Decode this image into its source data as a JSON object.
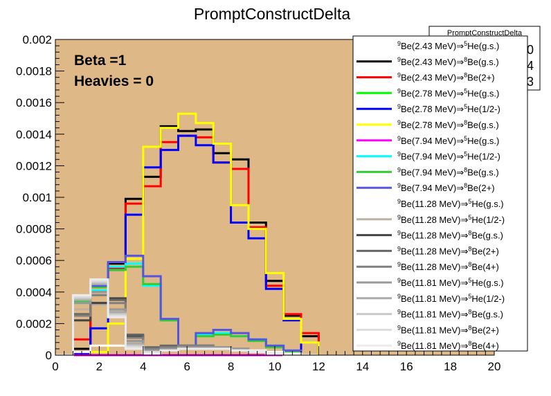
{
  "chart_data": {
    "type": "line",
    "title": "PromptConstructDelta",
    "xlabel": "",
    "ylabel": "",
    "xlim": [
      0,
      20
    ],
    "ylim": [
      0,
      0.002
    ],
    "x_ticks": [
      "0",
      "2",
      "4",
      "6",
      "8",
      "10",
      "12",
      "14",
      "16",
      "18",
      "20"
    ],
    "y_ticks": [
      "0",
      "0.0002",
      "0.0004",
      "0.0006",
      "0.0008",
      "0.001",
      "0.0012",
      "0.0014",
      "0.0016",
      "0.0018",
      "0.002"
    ],
    "plot_background": "#deb887",
    "annotations": [
      "Beta =1",
      "Heavies = 0"
    ],
    "stats_box": {
      "title": "PromptConstructDelta",
      "values": [
        "0",
        "4",
        "3"
      ]
    },
    "bin_edges": [
      0,
      0.8,
      1.6,
      2.4,
      3.2,
      4.0,
      4.8,
      5.6,
      6.4,
      7.2,
      8.0,
      8.8,
      9.6,
      10.4,
      11.2,
      12.0
    ],
    "series": [
      {
        "name": "9Be(2.43 MeV)⇒5He(g.s.)",
        "color": "#ffffff",
        "values": [
          0,
          0,
          0,
          0,
          0,
          0,
          0,
          0,
          0,
          0,
          0,
          0,
          0,
          0,
          0
        ]
      },
      {
        "name": "9Be(2.43 MeV)⇒8Be(g.s.)",
        "color": "#000000",
        "values": [
          0,
          4e-05,
          0.00033,
          0.00058,
          0.00099,
          0.00113,
          0.00145,
          0.00142,
          0.00143,
          0.00128,
          0.00124,
          0.00084,
          0.00047,
          0.00025,
          0.00012
        ]
      },
      {
        "name": "9Be(2.43 MeV)⇒8Be(2+)",
        "color": "#ff0000",
        "values": [
          0,
          0.0001,
          0.00032,
          0.00055,
          0.00096,
          0.00107,
          0.00135,
          0.00139,
          0.00138,
          0.00122,
          0.00118,
          0.00081,
          0.00044,
          0.00026,
          0.00014
        ]
      },
      {
        "name": "9Be(2.78 MeV)⇒5He(g.s.)",
        "color": "#00ff00",
        "values": [
          0,
          0,
          0,
          0,
          0,
          0,
          0,
          0,
          0,
          0,
          0,
          0,
          0,
          0,
          0
        ]
      },
      {
        "name": "9Be(2.78 MeV)⇒5He(1/2-)",
        "color": "#0000ff",
        "values": [
          0,
          1e-05,
          0.00017,
          0.00054,
          0.00089,
          0.00119,
          0.0013,
          0.00139,
          0.00133,
          0.00122,
          0.00084,
          0.00074,
          0.00042,
          0.00022,
          0
        ]
      },
      {
        "name": "9Be(2.78 MeV)⇒8Be(g.s.)",
        "color": "#ffff00",
        "values": [
          0,
          0,
          2e-05,
          0.0002,
          0.00061,
          0.00132,
          0.00144,
          0.00153,
          0.00147,
          0.00134,
          0.00095,
          0.0008,
          0.00052,
          0.00023,
          8e-05
        ]
      },
      {
        "name": "9Be(7.94 MeV)⇒5He(g.s.)",
        "color": "#ff00ff",
        "values": [
          0,
          0,
          0,
          0,
          0,
          0,
          0,
          0,
          0,
          0,
          0,
          0,
          0,
          0,
          0
        ]
      },
      {
        "name": "9Be(7.94 MeV)⇒5He(1/2-)",
        "color": "#00ffff",
        "values": [
          0,
          0.00033,
          0.00041,
          0.00056,
          0.00058,
          0.00044,
          0.00022,
          6e-05,
          0.00013,
          0.00014,
          0.00012,
          0.0001,
          6e-05,
          2e-05,
          0
        ]
      },
      {
        "name": "9Be(7.94 MeV)⇒8Be(g.s.)",
        "color": "#33cc33",
        "values": [
          0,
          0.00034,
          0.00043,
          0.00054,
          0.00056,
          0.00045,
          0.00022,
          6e-05,
          0.00012,
          0.00013,
          0.00012,
          9e-05,
          5e-05,
          2e-05,
          0
        ]
      },
      {
        "name": "9Be(7.94 MeV)⇒8Be(2+)",
        "color": "#5555dd",
        "values": [
          0,
          0.00036,
          0.00044,
          0.00059,
          0.00063,
          0.0005,
          0.00023,
          6e-05,
          0.00014,
          0.00016,
          0.00014,
          0.0001,
          6e-05,
          3e-05,
          0
        ]
      },
      {
        "name": "9Be(11.28 MeV)⇒5He(g.s.)",
        "color": "#ffffff",
        "values": [
          0,
          2e-05,
          6e-05,
          6e-05,
          5e-05,
          3e-05,
          4e-05,
          6e-05,
          6e-05,
          5e-05,
          4e-05,
          3e-05,
          2e-05,
          1e-05,
          0
        ]
      },
      {
        "name": "9Be(11.28 MeV)⇒5He(1/2-)",
        "color": "#bfb1a0",
        "values": [
          0,
          0.00029,
          0.00032,
          0.00028,
          8e-05,
          2e-05,
          3e-05,
          5e-05,
          6e-05,
          5e-05,
          4e-05,
          2e-05,
          1e-05,
          0,
          0
        ]
      },
      {
        "name": "9Be(11.28 MeV)⇒8Be(g.s.)",
        "color": "#444444",
        "values": [
          0,
          0.00022,
          0.00033,
          0.00036,
          0.00012,
          4e-05,
          5e-05,
          6e-05,
          6e-05,
          5e-05,
          4e-05,
          2e-05,
          1e-05,
          0,
          0
        ]
      },
      {
        "name": "9Be(11.28 MeV)⇒8Be(2+)",
        "color": "#666666",
        "values": [
          0,
          0.00026,
          0.0004,
          0.00035,
          0.00013,
          5e-05,
          6e-05,
          6e-05,
          6e-05,
          5e-05,
          4e-05,
          2e-05,
          1e-05,
          0,
          0
        ]
      },
      {
        "name": "9Be(11.28 MeV)⇒8Be(4+)",
        "color": "#7f7f7f",
        "values": [
          0,
          0.00025,
          0.00038,
          0.00033,
          0.00011,
          4e-05,
          5e-05,
          6e-05,
          6e-05,
          5e-05,
          4e-05,
          2e-05,
          1e-05,
          0,
          0
        ]
      },
      {
        "name": "9Be(11.81 MeV)⇒5He(g.s.)",
        "color": "#999999",
        "values": [
          0,
          0.00033,
          0.0004,
          0.00029,
          9e-05,
          3e-05,
          4e-05,
          5e-05,
          5e-05,
          5e-05,
          4e-05,
          2e-05,
          1e-05,
          0,
          0
        ]
      },
      {
        "name": "9Be(11.81 MeV)⇒5He(1/2-)",
        "color": "#aaaaaa",
        "values": [
          0,
          0.00035,
          0.00045,
          0.00027,
          7e-05,
          2e-05,
          3e-05,
          4e-05,
          4e-05,
          4e-05,
          3e-05,
          2e-05,
          1e-05,
          0,
          0
        ]
      },
      {
        "name": "9Be(11.81 MeV)⇒8Be(g.s.)",
        "color": "#c8c8c8",
        "values": [
          0,
          0.00036,
          0.00046,
          0.00026,
          6e-05,
          2e-05,
          3e-05,
          4e-05,
          4e-05,
          4e-05,
          3e-05,
          2e-05,
          1e-05,
          0,
          0
        ]
      },
      {
        "name": "9Be(11.81 MeV)⇒8Be(2+)",
        "color": "#dcdcdc",
        "values": [
          0,
          0.00037,
          0.00047,
          0.00025,
          5e-05,
          2e-05,
          3e-05,
          4e-05,
          4e-05,
          4e-05,
          3e-05,
          2e-05,
          1e-05,
          0,
          0
        ]
      },
      {
        "name": "9Be(11.81 MeV)⇒8Be(4+)",
        "color": "#ebebeb",
        "values": [
          0,
          0.00038,
          0.00048,
          0.00024,
          4e-05,
          1e-05,
          3e-05,
          4e-05,
          4e-05,
          4e-05,
          3e-05,
          2e-05,
          1e-05,
          0,
          0
        ]
      }
    ]
  }
}
